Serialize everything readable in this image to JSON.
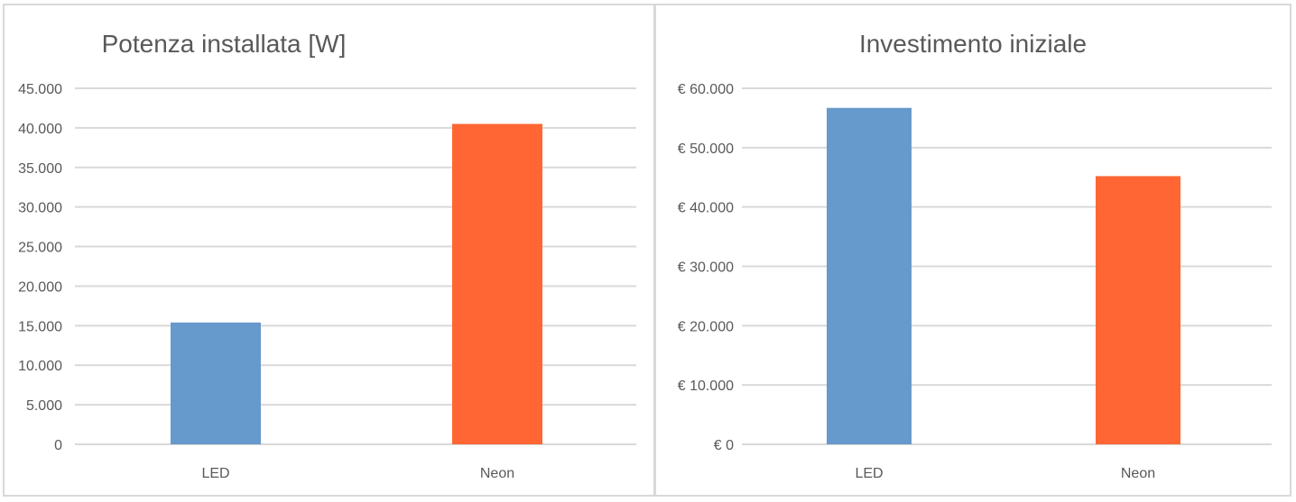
{
  "chart_data": [
    {
      "type": "bar",
      "title": "Potenza installata [W]",
      "categories": [
        "LED",
        "Neon"
      ],
      "values": [
        15400,
        40500
      ],
      "bar_colors": [
        "#6699cc",
        "#ff6633"
      ],
      "ylim": [
        0,
        45000
      ],
      "yticks": [
        0,
        5000,
        10000,
        15000,
        20000,
        25000,
        30000,
        35000,
        40000,
        45000
      ],
      "ytick_labels": [
        "0",
        "5.000",
        "10.000",
        "15.000",
        "20.000",
        "25.000",
        "30.000",
        "35.000",
        "40.000",
        "45.000"
      ],
      "grid": true,
      "legend": "none"
    },
    {
      "type": "bar",
      "title": "Investimento iniziale",
      "categories": [
        "LED",
        "Neon"
      ],
      "values": [
        56700,
        45200
      ],
      "bar_colors": [
        "#6699cc",
        "#ff6633"
      ],
      "ylim": [
        0,
        60000
      ],
      "yticks": [
        0,
        10000,
        20000,
        30000,
        40000,
        50000,
        60000
      ],
      "ytick_labels": [
        "€ 0",
        "€ 10.000",
        "€ 20.000",
        "€ 30.000",
        "€ 40.000",
        "€ 50.000",
        "€ 60.000"
      ],
      "grid": true,
      "legend": "none"
    }
  ],
  "colors": {
    "led": "#6699cc",
    "neon": "#ff6633",
    "grid": "#d9d9d9",
    "text": "#595959"
  }
}
